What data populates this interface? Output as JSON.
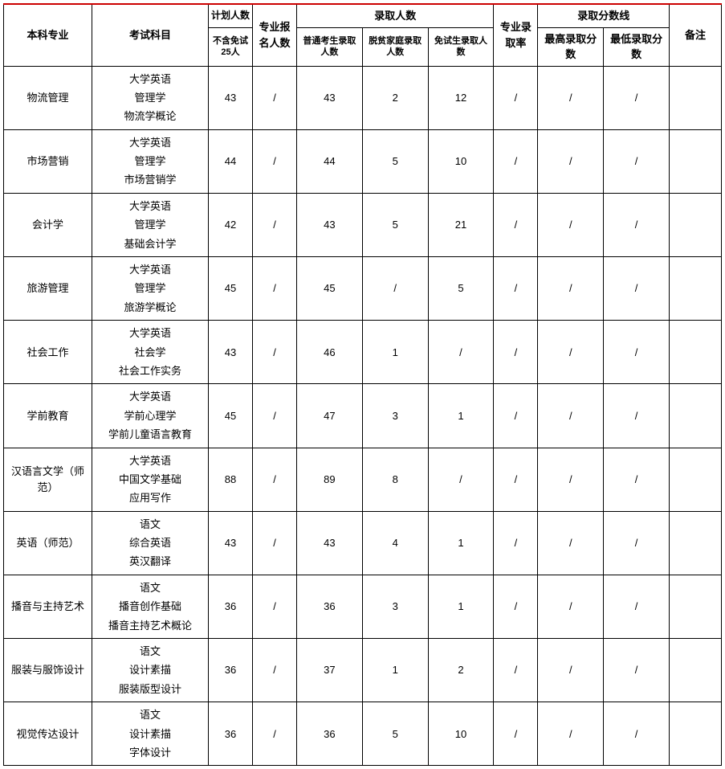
{
  "headers": {
    "major": "本科专业",
    "subjects": "考试科目",
    "plan_count": "计划人数",
    "plan_sub": "不含免试25人",
    "applicants": "专业报名人数",
    "admit_group": "录取人数",
    "admit_normal": "普通考生录取人数",
    "admit_poverty": "脱贫家庭录取人数",
    "admit_exempt": "免试生录取人数",
    "rate": "专业录取率",
    "score_group": "录取分数线",
    "score_max": "最高录取分数",
    "score_min": "最低录取分数",
    "remark": "备注"
  },
  "rows": [
    {
      "major": "物流管理",
      "subjects": "大学英语\n管理学\n物流学概论",
      "plan": "43",
      "applicants": "/",
      "admit_normal": "43",
      "admit_poverty": "2",
      "admit_exempt": "12",
      "rate": "/",
      "score_max": "/",
      "score_min": "/",
      "remark": ""
    },
    {
      "major": "市场营销",
      "subjects": "大学英语\n管理学\n市场营销学",
      "plan": "44",
      "applicants": "/",
      "admit_normal": "44",
      "admit_poverty": "5",
      "admit_exempt": "10",
      "rate": "/",
      "score_max": "/",
      "score_min": "/",
      "remark": ""
    },
    {
      "major": "会计学",
      "subjects": "大学英语\n管理学\n基础会计学",
      "plan": "42",
      "applicants": "/",
      "admit_normal": "43",
      "admit_poverty": "5",
      "admit_exempt": "21",
      "rate": "/",
      "score_max": "/",
      "score_min": "/",
      "remark": ""
    },
    {
      "major": "旅游管理",
      "subjects": "大学英语\n管理学\n旅游学概论",
      "plan": "45",
      "applicants": "/",
      "admit_normal": "45",
      "admit_poverty": "/",
      "admit_exempt": "5",
      "rate": "/",
      "score_max": "/",
      "score_min": "/",
      "remark": ""
    },
    {
      "major": "社会工作",
      "subjects": "大学英语\n社会学\n社会工作实务",
      "plan": "43",
      "applicants": "/",
      "admit_normal": "46",
      "admit_poverty": "1",
      "admit_exempt": "/",
      "rate": "/",
      "score_max": "/",
      "score_min": "/",
      "remark": ""
    },
    {
      "major": "学前教育",
      "subjects": "大学英语\n学前心理学\n学前儿童语言教育",
      "plan": "45",
      "applicants": "/",
      "admit_normal": "47",
      "admit_poverty": "3",
      "admit_exempt": "1",
      "rate": "/",
      "score_max": "/",
      "score_min": "/",
      "remark": ""
    },
    {
      "major": "汉语言文学（师范）",
      "subjects": "大学英语\n中国文学基础\n应用写作",
      "plan": "88",
      "applicants": "/",
      "admit_normal": "89",
      "admit_poverty": "8",
      "admit_exempt": "/",
      "rate": "/",
      "score_max": "/",
      "score_min": "/",
      "remark": ""
    },
    {
      "major": "英语（师范）",
      "subjects": "语文\n综合英语\n英汉翻译",
      "plan": "43",
      "applicants": "/",
      "admit_normal": "43",
      "admit_poverty": "4",
      "admit_exempt": "1",
      "rate": "/",
      "score_max": "/",
      "score_min": "/",
      "remark": ""
    },
    {
      "major": "播音与主持艺术",
      "subjects": "语文\n播音创作基础\n播音主持艺术概论",
      "plan": "36",
      "applicants": "/",
      "admit_normal": "36",
      "admit_poverty": "3",
      "admit_exempt": "1",
      "rate": "/",
      "score_max": "/",
      "score_min": "/",
      "remark": ""
    },
    {
      "major": "服装与服饰设计",
      "subjects": "语文\n设计素描\n服装版型设计",
      "plan": "36",
      "applicants": "/",
      "admit_normal": "37",
      "admit_poverty": "1",
      "admit_exempt": "2",
      "rate": "/",
      "score_max": "/",
      "score_min": "/",
      "remark": ""
    },
    {
      "major": "视觉传达设计",
      "subjects": "语文\n设计素描\n字体设计",
      "plan": "36",
      "applicants": "/",
      "admit_normal": "36",
      "admit_poverty": "5",
      "admit_exempt": "10",
      "rate": "/",
      "score_max": "/",
      "score_min": "/",
      "remark": ""
    }
  ],
  "style": {
    "border_color": "#000000",
    "top_accent_color": "#cc0000",
    "background": "#ffffff",
    "font_family": "Microsoft YaHei",
    "header_fontsize": 13,
    "cell_fontsize": 13,
    "sub_header_fontsize": 11
  }
}
